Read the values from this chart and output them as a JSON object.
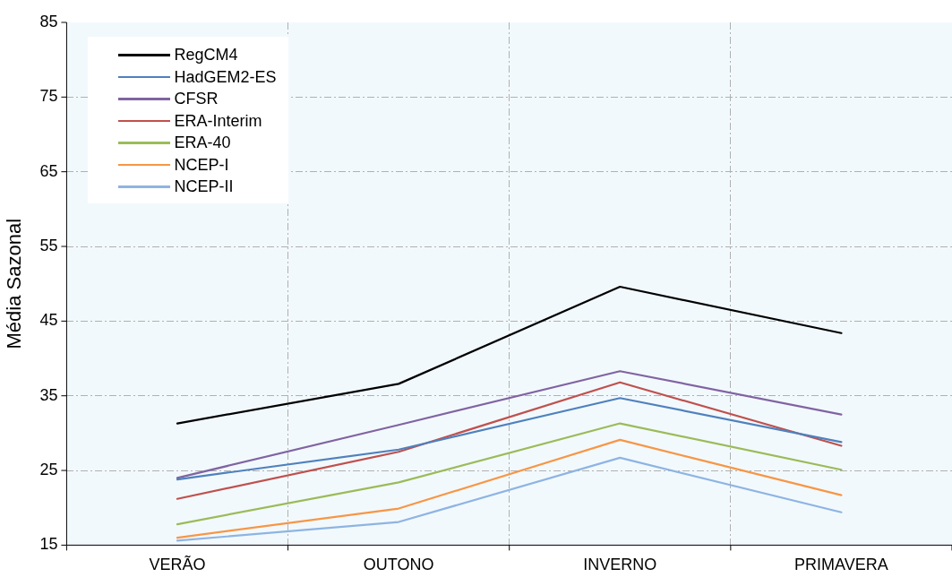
{
  "chart_data": {
    "type": "line",
    "ylabel": "Média Sazonal",
    "categories": [
      "VERÃO",
      "OUTONO",
      "INVERNO",
      "PRIMAVERA"
    ],
    "series": [
      {
        "name": "RegCM4",
        "color": "#000000",
        "values": [
          31.3,
          36.6,
          49.6,
          43.4
        ]
      },
      {
        "name": "HadGEM2-ES",
        "color": "#4f81bd",
        "values": [
          23.8,
          27.8,
          34.7,
          28.8
        ]
      },
      {
        "name": "CFSR",
        "color": "#8064a2",
        "values": [
          24.0,
          31.1,
          38.3,
          32.5
        ]
      },
      {
        "name": "ERA-Interim",
        "color": "#c0504d",
        "values": [
          21.2,
          27.5,
          36.8,
          28.3
        ]
      },
      {
        "name": "ERA-40",
        "color": "#9bbb59",
        "values": [
          17.8,
          23.4,
          31.3,
          25.1
        ]
      },
      {
        "name": "NCEP-I",
        "color": "#f79646",
        "values": [
          16.0,
          19.9,
          29.1,
          21.7
        ]
      },
      {
        "name": "NCEP-II",
        "color": "#8eb4e3",
        "values": [
          15.6,
          18.1,
          26.7,
          19.4
        ]
      }
    ],
    "ylim": [
      15,
      85
    ],
    "yticks": [
      15,
      25,
      35,
      45,
      55,
      65,
      75,
      85
    ],
    "grid": true,
    "legend": "top left",
    "marker": "none",
    "line_style": "solid"
  }
}
